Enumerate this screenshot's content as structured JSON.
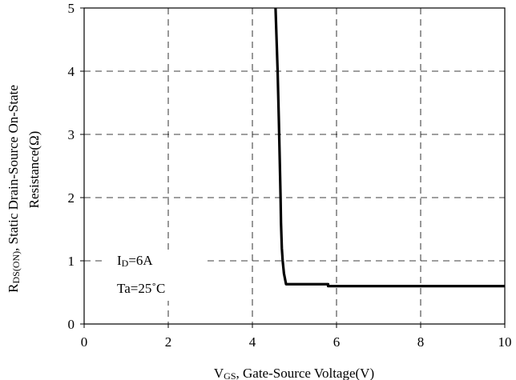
{
  "chart_data": {
    "type": "line",
    "title": "",
    "xlabel": {
      "main": "V",
      "sub": "GS",
      "rest": ", Gate-Source Voltage(V)"
    },
    "ylabel": {
      "line1_main": "R",
      "line1_sub": "DS(ON)",
      "line1_rest": ", Static Drain-Source On-State",
      "line2": "Resistance(Ω)"
    },
    "xlim": [
      0,
      10
    ],
    "ylim": [
      0,
      5
    ],
    "xticks": [
      "0",
      "2",
      "4",
      "6",
      "8",
      "10"
    ],
    "yticks": [
      "0",
      "1",
      "2",
      "3",
      "4",
      "5"
    ],
    "grid": true,
    "series": [
      {
        "x": [
          4.55,
          4.57,
          4.6,
          4.63,
          4.65,
          4.67,
          4.68,
          4.7,
          4.72,
          4.75,
          4.8,
          5.0,
          5.5,
          5.8,
          5.8,
          7.0,
          9.0,
          10.0
        ],
        "y": [
          5.0,
          4.6,
          4.0,
          3.2,
          2.6,
          2.0,
          1.6,
          1.2,
          1.0,
          0.8,
          0.63,
          0.63,
          0.63,
          0.63,
          0.6,
          0.6,
          0.6,
          0.6
        ]
      }
    ],
    "annotations": {
      "id_main": "I",
      "id_sub": "D",
      "id_rest": "=6A",
      "ta": "Ta=25˚C"
    },
    "line_color": "#000000"
  }
}
